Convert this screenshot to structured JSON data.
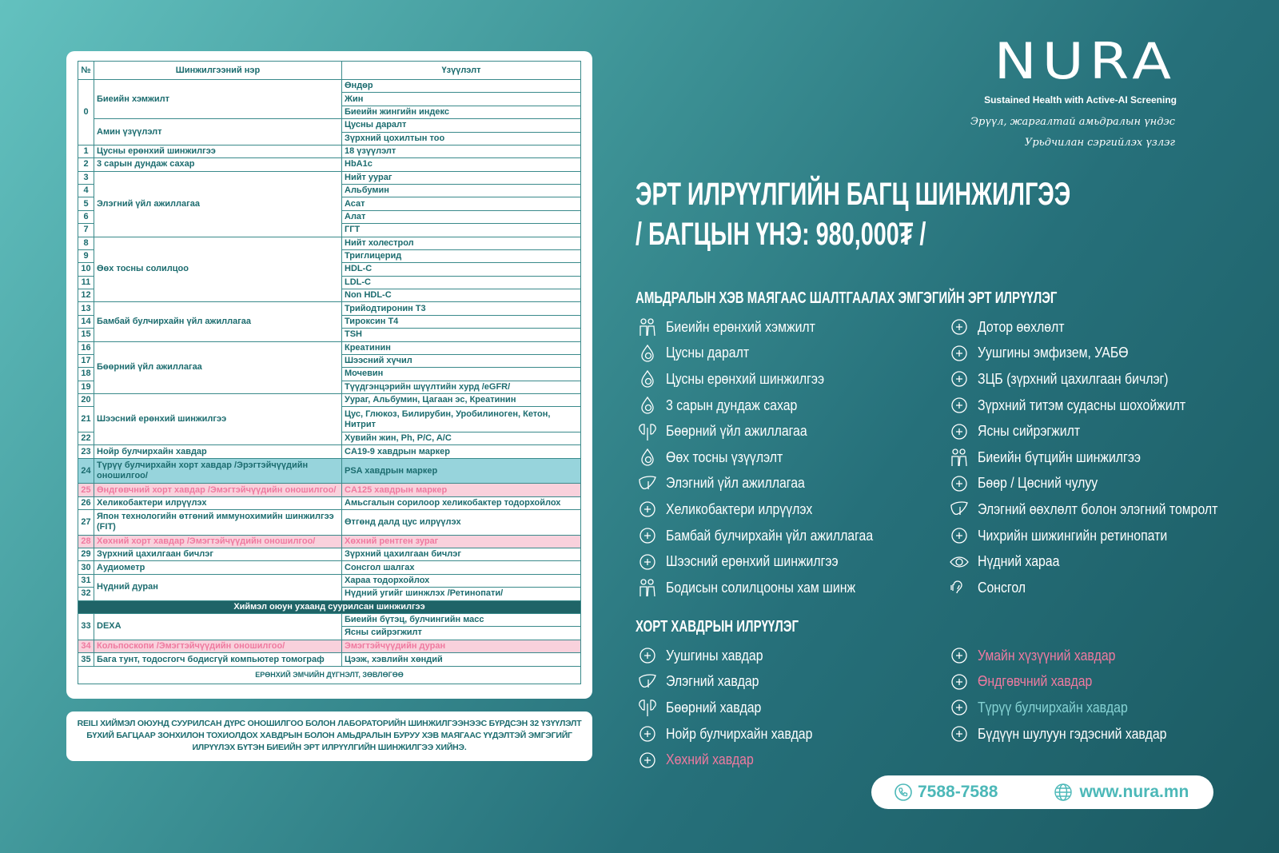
{
  "table": {
    "headers": [
      "№",
      "Шинжилгээний нэр",
      "Үзүүлэлт"
    ],
    "groups": [
      {
        "nos": [
          "0"
        ],
        "names": [
          {
            "text": "Биеийн хэмжилт",
            "results": [
              "Өндөр",
              "Жин",
              "Биеийн жингийн индекс"
            ]
          },
          {
            "text": "Амин үзүүлэлт",
            "results": [
              "Цусны даралт",
              "Зүрхний цохилтын тоо"
            ]
          }
        ]
      },
      {
        "nos": [
          "1"
        ],
        "names": [
          {
            "text": "Цусны ерөнхий шинжилгээ",
            "results": [
              "18 үзүүлэлт"
            ]
          }
        ]
      },
      {
        "nos": [
          "2"
        ],
        "names": [
          {
            "text": "3 сарын дундаж сахар",
            "results": [
              "HbA1c"
            ]
          }
        ]
      },
      {
        "nos": [
          "3",
          "4",
          "5",
          "6",
          "7"
        ],
        "names": [
          {
            "text": "Элэгний үйл ажиллагаа",
            "results": [
              "Нийт уураг",
              "Альбумин",
              "Асат",
              "Алат",
              "ГГТ"
            ]
          }
        ]
      },
      {
        "nos": [
          "8",
          "9",
          "10",
          "11",
          "12"
        ],
        "names": [
          {
            "text": "Өөх тосны солилцоо",
            "results": [
              "Нийт холестрол",
              "Триглицерид",
              "HDL-C",
              "LDL-C",
              "Non HDL-C"
            ]
          }
        ]
      },
      {
        "nos": [
          "13",
          "14",
          "15"
        ],
        "names": [
          {
            "text": "Бамбай булчирхайн үйл ажиллагаа",
            "results": [
              "Трийодтиронин Т3",
              "Тироксин Т4",
              "TSH"
            ]
          }
        ]
      },
      {
        "nos": [
          "16",
          "17",
          "18",
          "19"
        ],
        "names": [
          {
            "text": "Бөөрний үйл ажиллагаа",
            "results": [
              "Креатинин",
              "Шээсний хүчил",
              "Мочевин",
              "Түүдгэнцэрийн шүүлтийн хурд /eGFR/"
            ]
          }
        ]
      },
      {
        "nos": [
          "20",
          "21",
          "22"
        ],
        "names": [
          {
            "text": "Шээсний ерөнхий шинжилгээ",
            "results": [
              "Уураг, Альбумин, Цагаан эс, Креатинин",
              "Цус, Глюкоз, Билирубин, Уробилиноген, Кетон, Нитрит",
              "Хувийн жин, Ph, P/C, A/C"
            ]
          }
        ]
      },
      {
        "nos": [
          "23"
        ],
        "names": [
          {
            "text": "Нойр булчирхайн хавдар",
            "results": [
              "CA19-9 хавдрын маркер"
            ]
          }
        ]
      },
      {
        "nos": [
          "24"
        ],
        "bg": "teal",
        "names": [
          {
            "text": "Түрүү булчирхайн хорт хавдар /Эрэгтэйчүүдийн оношилгоо/",
            "results": [
              "PSA  хавдрын маркер"
            ]
          }
        ]
      },
      {
        "nos": [
          "25"
        ],
        "bg": "pink",
        "names": [
          {
            "text": "Өндгөвчний хорт хавдар /Эмэгтэйчүүдийн оношилгоо/",
            "results": [
              "CA125  хавдрын маркер"
            ]
          }
        ]
      },
      {
        "nos": [
          "26"
        ],
        "names": [
          {
            "text": "Хеликобактери илрүүлэх",
            "results": [
              "Амьсгалын сорилоор хеликобактер тодорхойлох"
            ]
          }
        ]
      },
      {
        "nos": [
          "27"
        ],
        "names": [
          {
            "text": "Япон технологийн өтгөний иммунохимийн шинжилгээ (FIT)",
            "results": [
              "Өтгөнд далд цус илрүүлэх"
            ]
          }
        ]
      },
      {
        "nos": [
          "28"
        ],
        "bg": "pink",
        "names": [
          {
            "text": "Хөхний хорт хавдар /Эмэгтэйчүүдийн оношилгоо/",
            "results": [
              "Хөхний рентген зураг"
            ]
          }
        ]
      },
      {
        "nos": [
          "29"
        ],
        "names": [
          {
            "text": "Зүрхний цахилгаан бичлэг",
            "results": [
              "Зүрхний цахилгаан бичлэг"
            ]
          }
        ]
      },
      {
        "nos": [
          "30"
        ],
        "names": [
          {
            "text": "Аудиометр",
            "results": [
              "Сонсгол шалгах"
            ]
          }
        ]
      },
      {
        "nos": [
          "31",
          "32"
        ],
        "names": [
          {
            "text": "Нүдний дуран",
            "results": [
              "Хараа тодорхойлох",
              "Нүдний угийг шинжлэх /Ретинопати/"
            ]
          }
        ]
      },
      {
        "section": "Хиймэл оюун ухаанд суурилсан шинжилгээ"
      },
      {
        "nos": [
          "33"
        ],
        "names": [
          {
            "text": "DEXA",
            "results": [
              "Биеийн бүтэц, булчингийн масс",
              "Ясны сийрэгжилт"
            ]
          }
        ]
      },
      {
        "nos": [
          "34"
        ],
        "bg": "pink",
        "names": [
          {
            "text": "Кольпоскопи /Эмэгтэйчүүдийн оношилгоо/",
            "results": [
              "Эмэгтэйчүүдийн дуран"
            ]
          }
        ]
      },
      {
        "nos": [
          "35"
        ],
        "names": [
          {
            "text": "Бага тунт, тодосгогч бодисгүй компьютер томограф",
            "results": [
              "Цээж, хэвлийн хөндий"
            ]
          }
        ]
      }
    ],
    "footer": "ЕРӨНХИЙ ЭМЧИЙН ДҮГНЭЛТ, ЗӨВЛӨГӨӨ"
  },
  "note": "REILI ХИЙМЭЛ ОЮУНД СУУРИЛСАН ДҮРС ОНОШИЛГОО БОЛОН ЛАБОРАТОРИЙН ШИНЖИЛГЭЭНЭЭС БҮРДСЭН 32 ҮЗҮҮЛЭЛТ БҮХИЙ БАГЦААР ЗОНХИЛОН ТОХИОЛДОХ ХАВДРЫН БОЛОН АМЬДРАЛЫН БУРУУ ХЭВ МАЯГААС ҮҮДЭЛТЭЙ ЭМГЭГИЙГ ИЛРҮҮЛЭХ БҮТЭН БИЕИЙН ЭРТ ИЛРҮҮЛГИЙН ШИНЖИЛГЭЭ ХИЙНЭ.",
  "logo": {
    "brand": "NURA",
    "tagline": "Sustained Health with Active-AI Screening"
  },
  "slogan": [
    "Эрүүл, жаргалтай амьдралын үндэс",
    "Урьдчилан сэргийлэх үзлэг"
  ],
  "title": {
    "line1": "ЭРТ ИЛРҮҮЛГИЙН БАГЦ ШИНЖИЛГЭЭ",
    "line2": "/ БАГЦЫН ҮНЭ: 980,000₮ /"
  },
  "lifestyle": {
    "heading": "АМЬДРАЛЫН ХЭВ МАЯГААС ШАЛТГААЛАХ ЭМГЭГИЙН ЭРТ ИЛРҮҮЛЭГ",
    "left": [
      {
        "label": "Биеийн ерөнхий хэмжилт",
        "icon": "people-icon"
      },
      {
        "label": "Цусны даралт",
        "icon": "blood-drop-icon"
      },
      {
        "label": "Цусны ерөнхий шинжилгээ",
        "icon": "blood-drop-icon"
      },
      {
        "label": "3 сарын дундаж сахар",
        "icon": "blood-drop-icon"
      },
      {
        "label": "Бөөрний үйл ажиллагаа",
        "icon": "kidney-icon"
      },
      {
        "label": "Өөх тосны үзүүлэлт",
        "icon": "blood-drop-icon"
      },
      {
        "label": "Элэгний үйл ажиллагаа",
        "icon": "liver-icon"
      },
      {
        "label": "Хеликобактери илрүүлэх",
        "icon": "stomach-icon"
      },
      {
        "label": "Бамбай булчирхайн үйл ажиллагаа",
        "icon": "thyroid-icon"
      },
      {
        "label": "Шээсний ерөнхий шинжилгээ",
        "icon": "urine-cup-icon"
      },
      {
        "label": "Бодисын солилцооны хам шинж",
        "icon": "people-icon"
      }
    ],
    "right": [
      {
        "label": "Дотор өөхлөлт",
        "icon": "body-icon"
      },
      {
        "label": "Уушгины эмфизем, УАБӨ",
        "icon": "lungs-icon"
      },
      {
        "label": "ЗЦБ (зүрхний цахилгаан бичлэг)",
        "icon": "heart-pulse-icon"
      },
      {
        "label": "Зүрхний титэм судасны шохойжилт",
        "icon": "heart-icon"
      },
      {
        "label": "Ясны сийрэгжилт",
        "icon": "bone-icon"
      },
      {
        "label": "Биеийн бүтцийн шинжилгээ",
        "icon": "people-icon"
      },
      {
        "label": "Бөөр / Цөсний чулуу",
        "icon": "kidney-stone-icon"
      },
      {
        "label": "Элэгний өөхлөлт болон элэгний томролт",
        "icon": "liver-icon"
      },
      {
        "label": "Чихрийн шижингийн ретинопати",
        "icon": "retina-icon"
      },
      {
        "label": "Нүдний хараа",
        "icon": "eye-icon"
      },
      {
        "label": "Сонсгол",
        "icon": "ear-icon"
      }
    ]
  },
  "cancer": {
    "heading": "ХОРТ ХАВДРЫН ИЛРҮҮЛЭГ",
    "left": [
      {
        "label": "Уушгины хавдар",
        "icon": "lungs-icon"
      },
      {
        "label": "Элэгний хавдар",
        "icon": "liver-icon"
      },
      {
        "label": "Бөөрний хавдар",
        "icon": "kidney-icon"
      },
      {
        "label": "Нойр булчирхайн хавдар",
        "icon": "pancreas-icon"
      },
      {
        "label": "Хөхний хавдар",
        "icon": "breast-icon",
        "color": "pink"
      }
    ],
    "right": [
      {
        "label": "Умайн хүзүүний хавдар",
        "icon": "uterus-icon",
        "color": "pink"
      },
      {
        "label": "Өндгөвчний хавдар",
        "icon": "uterus-icon",
        "color": "pink"
      },
      {
        "label": "Түрүү булчирхайн хавдар",
        "icon": "prostate-icon",
        "color": "teal"
      },
      {
        "label": "Бүдүүн шулуун гэдэсний хавдар",
        "icon": "colon-icon"
      }
    ]
  },
  "contact": {
    "phone": "7588-7588",
    "website": "www.nura.mn"
  },
  "colors": {
    "pink": "#ef7aa0",
    "teal": "#86d3d4",
    "table_text": "#1c6c6f",
    "section_bg": "#1f6467"
  }
}
